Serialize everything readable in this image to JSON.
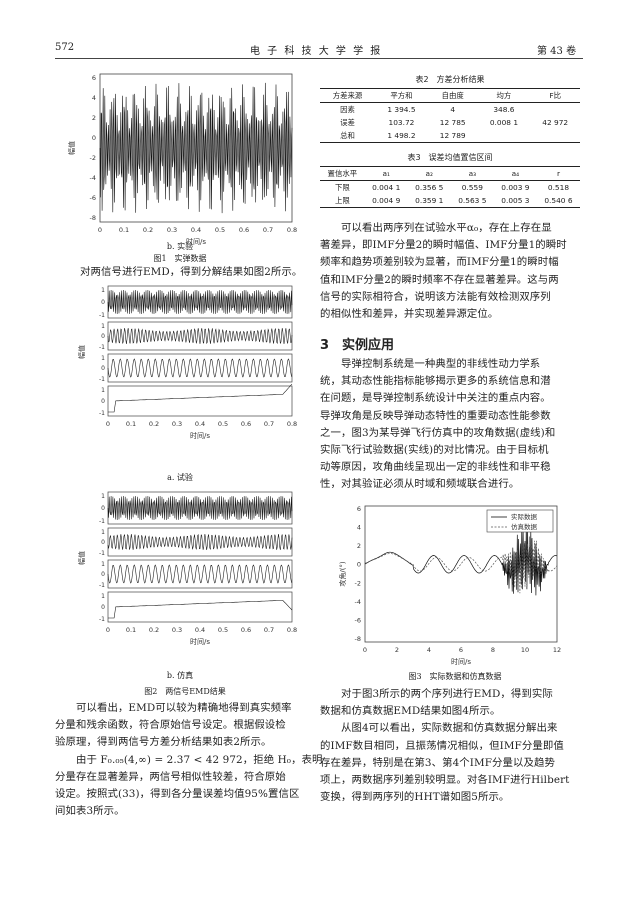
{
  "header": {
    "page_number": "572",
    "journal": "电 子 科 技 大 学 学 报",
    "volume": "第 43 卷"
  },
  "figure1": {
    "ylabel": "幅值",
    "xlabel": "时间/s",
    "xticks": [
      "0",
      "0.1",
      "0.2",
      "0.3",
      "0.4",
      "0.5",
      "0.6",
      "0.7",
      "0.8"
    ],
    "yticks": [
      "6",
      "4",
      "2",
      "0",
      "-2",
      "-4",
      "-6",
      "-8"
    ],
    "sub_caption": "b. 实验",
    "caption": "图1　实弹数据"
  },
  "left_text": {
    "line_after_fig1": "对两信号进行EMD，得到分解结果如图2所示。",
    "para2": [
      "　　可以看出，EMD可以较为精确地得到真实频率",
      "分量和残余函数，符合原始信号设定。根据假设检",
      "验原理，得到两信号方差分析结果如表2所示。",
      "　　由于 F₀.₀₅(4,∞) = 2.37 < 42 972，拒绝 H₀，表明",
      "分量存在显著差异，两信号相似性较差，符合原始",
      "设定。按照式(33)，得到各分量误差均值95%置信区",
      "间如表3所示。"
    ]
  },
  "figure2": {
    "panel_a_label": "a. 试验",
    "panel_b_label": "b. 仿真",
    "ylabel": "幅值",
    "xlabel": "时间/s",
    "xticks": [
      "0",
      "0.1",
      "0.2",
      "0.3",
      "0.4",
      "0.5",
      "0.6",
      "0.7",
      "0.8"
    ],
    "caption": "图2　两信号EMD结果"
  },
  "table2": {
    "title": "表2　方差分析结果",
    "headers": [
      "方差来源",
      "平方和",
      "自由度",
      "均方",
      "F比"
    ],
    "rows": [
      [
        "因素",
        "1 394.5",
        "4",
        "348.6",
        ""
      ],
      [
        "误差",
        "103.72",
        "12 785",
        "0.008 1",
        "42 972"
      ],
      [
        "总和",
        "1 498.2",
        "12 789",
        "",
        ""
      ]
    ]
  },
  "table3": {
    "title": "表3　误差均值置信区间",
    "headers": [
      "置信水平",
      "a₁",
      "a₂",
      "a₃",
      "a₄",
      "r"
    ],
    "rows": [
      [
        "下限",
        "0.004 1",
        "0.356 5",
        "0.559",
        "0.003 9",
        "0.518"
      ],
      [
        "上限",
        "0.004 9",
        "0.359 1",
        "0.563 5",
        "0.005 3",
        "0.540 6"
      ]
    ]
  },
  "right_text": {
    "para1": [
      "　　可以看出两序列在试验水平α₀，存在上存在显",
      "著差异，即IMF分量2的瞬时幅值、IMF分量1的瞬时",
      "频率和趋势项差别较为显著，而IMF分量1的瞬时幅",
      "值和IMF分量2的瞬时频率不存在显著差异。这与两",
      "信号的实际相符合，说明该方法能有效检测双序列",
      "的相似性和差异，并实现差异源定位。"
    ],
    "section_title": "3　实例应用",
    "para2": [
      "　　导弹控制系统是一种典型的非线性动力学系",
      "统，其动态性能指标能够揭示更多的系统信息和潜",
      "在问题，是导弹控制系统设计中关注的重点内容。",
      "导弹攻角是反映导弹动态特性的重要动态性能参数",
      "之一，图3为某导弹飞行仿真中的攻角数据(虚线)和",
      "实际飞行试验数据(实线)的对比情况。由于目标机",
      "动等原因，攻角曲线呈现出一定的非线性和非平稳",
      "性，对其验证必须从时域和频域联合进行。"
    ],
    "para3": [
      "　　对于图3所示的两个序列进行EMD，得到实际",
      "数据和仿真数据EMD结果如图4所示。",
      "　　从图4可以看出，实际数据和仿真数据分解出来",
      "的IMF数目相同，且振荡情况相似，但IMF分量即值",
      "存在差异，特别是在第3、第4个IMF分量以及趋势",
      "项上，两数据序列差别较明显。对各IMF进行Hilbert",
      "变换，得到两序列的HHT谱如图5所示。"
    ]
  },
  "figure3": {
    "legend": [
      "实际数据",
      "仿真数据"
    ],
    "ylabel": "攻角/(°)",
    "xlabel": "时间/s",
    "xticks": [
      "0",
      "2",
      "4",
      "6",
      "8",
      "10",
      "12"
    ],
    "yticks": [
      "6",
      "4",
      "2",
      "0",
      "-2",
      "-4",
      "-6",
      "-8"
    ],
    "caption": "图3　实际数据和仿真数据"
  }
}
